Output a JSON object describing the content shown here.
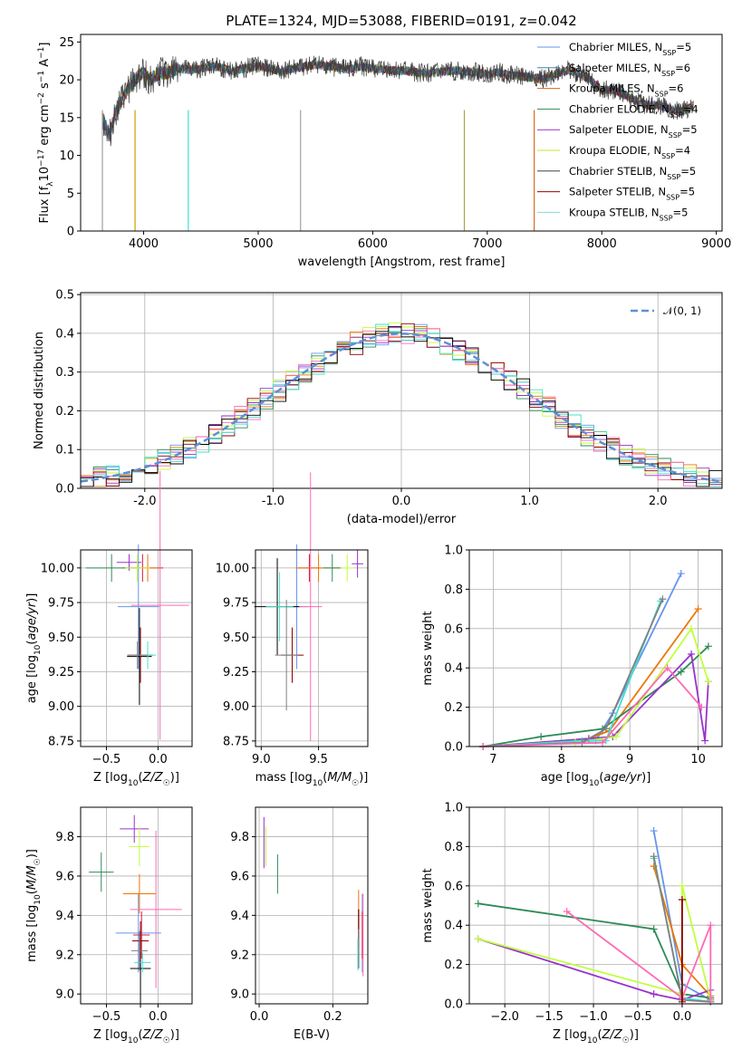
{
  "colors": [
    "#6495ed",
    "#dc143c",
    "#ee7600",
    "#2e8b57",
    "#9932cc",
    "#c0ff3e",
    "#000000",
    "#8b0000",
    "#40e0d0",
    "#ff69b4",
    "#808080"
  ],
  "series_names": [
    "Chabrier MILES, N$_{SSP}$=5",
    "Salpeter MILES, N$_{SSP}$=6",
    "Kroupa MILES, N$_{SSP}$=6",
    "Chabrier ELODIE, N$_{SSP}$=4",
    "Salpeter ELODIE, N$_{SSP}$=5",
    "Kroupa ELODIE, N$_{SSP}$=4",
    "Chabrier STELIB, N$_{SSP}$=5",
    "Salpeter STELIB, N$_{SSP}$=5",
    "Kroupa STELIB, N$_{SSP}$=5"
  ],
  "chart_data": [
    {
      "type": "line",
      "title": "PLATE=1324, MJD=53088, FIBERID=0191, z=0.042",
      "xlabel": "wavelength [Angstrom, rest frame]",
      "ylabel": "Flux [f_λ10^-17 erg cm^-2 s^-1 A^-1]",
      "xlim": [
        3450,
        9050
      ],
      "ylim": [
        0,
        26
      ],
      "xticks": [
        4000,
        5000,
        6000,
        7000,
        8000,
        9000
      ],
      "yticks": [
        0,
        5,
        10,
        15,
        20,
        25
      ],
      "legend": [
        {
          "prefix": "Chabrier MILES, N",
          "sub": "SSP",
          "suffix": "=5",
          "color": "#6495ed"
        },
        {
          "prefix": "Salpeter MILES, N",
          "sub": "SSP",
          "suffix": "=6",
          "color": "#4682b4"
        },
        {
          "prefix": "Kroupa MILES, N",
          "sub": "SSP",
          "suffix": "=6",
          "color": "#d2691e"
        },
        {
          "prefix": "Chabrier ELODIE, N",
          "sub": "SSP",
          "suffix": "=4",
          "color": "#2e8b57"
        },
        {
          "prefix": "Salpeter ELODIE, N",
          "sub": "SSP",
          "suffix": "=5",
          "color": "#9932cc"
        },
        {
          "prefix": "Kroupa ELODIE, N",
          "sub": "SSP",
          "suffix": "=4",
          "color": "#c8e632"
        },
        {
          "prefix": "Chabrier STELIB, N",
          "sub": "SSP",
          "suffix": "=5",
          "color": "#404040"
        },
        {
          "prefix": "Salpeter STELIB, N",
          "sub": "SSP",
          "suffix": "=5",
          "color": "#a00000"
        },
        {
          "prefix": "Kroupa STELIB, N",
          "sub": "SSP",
          "suffix": "=5",
          "color": "#7fdbdb"
        }
      ],
      "spectrum_x": [
        3640,
        3700,
        3750,
        3800,
        3850,
        3900,
        3950,
        4000,
        4050,
        4100,
        4150,
        4200,
        4300,
        4400,
        4500,
        4600,
        4700,
        4800,
        4900,
        5000,
        5100,
        5200,
        5300,
        5400,
        5500,
        5600,
        5700,
        5800,
        5900,
        6000,
        6100,
        6200,
        6300,
        6400,
        6500,
        6600,
        6700,
        6800,
        6900,
        7000,
        7100,
        7200,
        7300,
        7400,
        7500,
        7600,
        7700,
        7800,
        7900,
        8000,
        8100,
        8200,
        8300,
        8400,
        8500,
        8600,
        8700,
        8800
      ],
      "spectrum_y": [
        15,
        12.5,
        15.5,
        17,
        18.5,
        19.5,
        20.5,
        21,
        20,
        20.5,
        21,
        20.8,
        21.5,
        21.3,
        21.5,
        21.8,
        21.5,
        21.2,
        21.6,
        21.8,
        21.5,
        21,
        21.5,
        21.7,
        22,
        21.8,
        21.6,
        21.4,
        21.8,
        21.5,
        21.4,
        21.2,
        21.2,
        20.9,
        20.9,
        21,
        21.2,
        21.1,
        21,
        20.7,
        21,
        20.6,
        20.5,
        20.2,
        20.1,
        20.8,
        21.3,
        20.8,
        20,
        18.6,
        18.7,
        18,
        17.2,
        16.6,
        16.6,
        16.2,
        15.8,
        16.7
      ]
    },
    {
      "type": "line",
      "xlabel": "(data-model)/error",
      "ylabel": "Normed distribution",
      "xlim": [
        -2.5,
        2.5
      ],
      "ylim": [
        0,
        0.505
      ],
      "xticks": [
        -2,
        -1,
        0,
        1,
        2
      ],
      "yticks": [
        0.0,
        0.1,
        0.2,
        0.3,
        0.4,
        0.5
      ],
      "legend": [
        "𝒩(0, 1)"
      ],
      "curve": {
        "name": "𝒩(0, 1)",
        "mean": 0,
        "sigma": 1,
        "color": "#5f8fd5"
      }
    },
    {
      "type": "scatter",
      "xlabel": "Z [log10(Z/Z☉)]",
      "ylabel": "age [log10(age/yr)]",
      "xlim": [
        -0.75,
        0.33
      ],
      "ylim": [
        8.71,
        10.13
      ],
      "xticks": [
        -0.5,
        0.0
      ],
      "yticks": [
        8.75,
        9.0,
        9.25,
        9.5,
        9.75,
        10.0
      ],
      "points": [
        {
          "x": -0.19,
          "y": 9.72,
          "xerr": 0.2,
          "yerr": 0.45,
          "color": "#6495ed"
        },
        {
          "x": -0.15,
          "y": 10.0,
          "xerr": 0.2,
          "yerr": 0.1,
          "color": "#dc143c"
        },
        {
          "x": -0.1,
          "y": 10.0,
          "xerr": 0.1,
          "yerr": 0.1,
          "color": "#ee7600"
        },
        {
          "x": -0.45,
          "y": 10.0,
          "xerr": 0.25,
          "yerr": 0.1,
          "color": "#2e8b57"
        },
        {
          "x": -0.28,
          "y": 10.04,
          "xerr": 0.12,
          "yerr": 0.06,
          "color": "#9932cc"
        },
        {
          "x": -0.2,
          "y": 10.0,
          "xerr": 0.12,
          "yerr": 0.1,
          "color": "#c0ff3e"
        },
        {
          "x": -0.18,
          "y": 9.36,
          "xerr": 0.12,
          "yerr": 0.35,
          "color": "#000000"
        },
        {
          "x": -0.17,
          "y": 9.37,
          "xerr": 0.12,
          "yerr": 0.2,
          "color": "#8b0000"
        },
        {
          "x": -0.1,
          "y": 9.37,
          "xerr": 0.08,
          "yerr": 0.1,
          "color": "#40e0d0"
        },
        {
          "x": 0.02,
          "y": 9.73,
          "xerr": 0.28,
          "yerr": 0.97,
          "color": "#ff69b4"
        },
        {
          "x": -0.2,
          "y": 9.37,
          "xerr": 0.1,
          "yerr": 0.1,
          "color": "#808080"
        }
      ]
    },
    {
      "type": "scatter",
      "xlabel": "mass [log10(M/M☉)]",
      "ylabel": "",
      "xlim": [
        8.95,
        9.93
      ],
      "ylim": [
        8.71,
        10.13
      ],
      "xticks": [
        9.0,
        9.5
      ],
      "yticks": [
        8.75,
        9.0,
        9.25,
        9.5,
        9.75,
        10.0
      ],
      "points": [
        {
          "x": 9.31,
          "y": 9.72,
          "xerr": 0.1,
          "yerr": 0.45,
          "color": "#6495ed"
        },
        {
          "x": 9.42,
          "y": 10.0,
          "xerr": 0.1,
          "yerr": 0.1,
          "color": "#dc143c"
        },
        {
          "x": 9.5,
          "y": 10.0,
          "xerr": 0.2,
          "yerr": 0.1,
          "color": "#ee7600"
        },
        {
          "x": 9.62,
          "y": 10.0,
          "xerr": 0.08,
          "yerr": 0.1,
          "color": "#2e8b57"
        },
        {
          "x": 9.84,
          "y": 10.03,
          "xerr": 0.05,
          "yerr": 0.1,
          "color": "#9932cc"
        },
        {
          "x": 9.75,
          "y": 10.0,
          "xerr": 0.06,
          "yerr": 0.1,
          "color": "#c0ff3e"
        },
        {
          "x": 9.14,
          "y": 9.72,
          "xerr": 0.2,
          "yerr": 0.35,
          "color": "#000000"
        },
        {
          "x": 9.27,
          "y": 9.37,
          "xerr": 0.1,
          "yerr": 0.2,
          "color": "#8b0000"
        },
        {
          "x": 9.16,
          "y": 9.72,
          "xerr": 0.12,
          "yerr": 0.25,
          "color": "#40e0d0"
        },
        {
          "x": 9.43,
          "y": 9.72,
          "xerr": 0.1,
          "yerr": 0.97,
          "color": "#ff69b4"
        },
        {
          "x": 9.22,
          "y": 9.37,
          "xerr": 0.1,
          "yerr": 0.4,
          "color": "#808080"
        }
      ]
    },
    {
      "type": "line",
      "xlabel": "age [log10(age/yr)]",
      "ylabel": "mass weight",
      "xlim": [
        6.65,
        10.35
      ],
      "ylim": [
        0,
        1.0
      ],
      "xticks": [
        7,
        8,
        9,
        10
      ],
      "yticks": [
        0.0,
        0.2,
        0.4,
        0.6,
        0.8,
        1.0
      ],
      "series": [
        {
          "color": "#6495ed",
          "x": [
            6.85,
            8.5,
            8.75,
            9.75
          ],
          "y": [
            0.0,
            0.03,
            0.17,
            0.88
          ]
        },
        {
          "color": "#ee7600",
          "x": [
            6.85,
            8.4,
            8.7,
            10.0
          ],
          "y": [
            0.0,
            0.04,
            0.08,
            0.7
          ]
        },
        {
          "color": "#2e8b57",
          "x": [
            6.85,
            7.7,
            8.6,
            9.75,
            10.15
          ],
          "y": [
            0.0,
            0.05,
            0.09,
            0.38,
            0.51
          ]
        },
        {
          "color": "#9932cc",
          "x": [
            6.85,
            8.4,
            8.75,
            9.9,
            10.1,
            10.15
          ],
          "y": [
            0.0,
            0.04,
            0.05,
            0.47,
            0.03,
            0.33
          ]
        },
        {
          "color": "#c0ff3e",
          "x": [
            6.85,
            8.2,
            8.8,
            9.9,
            10.15
          ],
          "y": [
            0.0,
            0.02,
            0.05,
            0.6,
            0.33
          ]
        },
        {
          "color": "#40e0d0",
          "x": [
            6.85,
            8.3,
            8.65,
            9.45
          ],
          "y": [
            0.0,
            0.03,
            0.03,
            0.74
          ]
        },
        {
          "color": "#808080",
          "x": [
            6.85,
            8.3,
            8.65,
            9.48
          ],
          "y": [
            0.0,
            0.02,
            0.09,
            0.75
          ]
        },
        {
          "color": "#ff69b4",
          "x": [
            6.85,
            8.6,
            9.55,
            10.05
          ],
          "y": [
            0.0,
            0.02,
            0.4,
            0.2
          ]
        }
      ]
    },
    {
      "type": "scatter",
      "xlabel": "Z [log10(Z/Z☉)]",
      "ylabel": "mass [log10(M/M☉)]",
      "xlim": [
        -0.75,
        0.33
      ],
      "ylim": [
        8.95,
        9.95
      ],
      "xticks": [
        -0.5,
        0.0
      ],
      "yticks": [
        9.0,
        9.2,
        9.4,
        9.6,
        9.8
      ],
      "points": [
        {
          "x": -0.19,
          "y": 9.31,
          "xerr": 0.22,
          "yerr": 0.2,
          "color": "#6495ed"
        },
        {
          "x": -0.16,
          "y": 9.3,
          "xerr": 0.08,
          "yerr": 0.12,
          "color": "#dc143c"
        },
        {
          "x": -0.18,
          "y": 9.51,
          "xerr": 0.16,
          "yerr": 0.1,
          "color": "#ee7600"
        },
        {
          "x": -0.55,
          "y": 9.62,
          "xerr": 0.12,
          "yerr": 0.1,
          "color": "#2e8b57"
        },
        {
          "x": -0.23,
          "y": 9.84,
          "xerr": 0.14,
          "yerr": 0.07,
          "color": "#9932cc"
        },
        {
          "x": -0.18,
          "y": 9.75,
          "xerr": 0.1,
          "yerr": 0.1,
          "color": "#c0ff3e"
        },
        {
          "x": -0.17,
          "y": 9.13,
          "xerr": 0.1,
          "yerr": 0.2,
          "color": "#000000"
        },
        {
          "x": -0.17,
          "y": 9.27,
          "xerr": 0.08,
          "yerr": 0.1,
          "color": "#8b0000"
        },
        {
          "x": -0.15,
          "y": 9.16,
          "xerr": 0.08,
          "yerr": 0.05,
          "color": "#40e0d0"
        },
        {
          "x": -0.02,
          "y": 9.43,
          "xerr": 0.25,
          "yerr": 0.4,
          "color": "#ff69b4"
        },
        {
          "x": -0.18,
          "y": 9.22,
          "xerr": 0.08,
          "yerr": 0.1,
          "color": "#808080"
        }
      ]
    },
    {
      "type": "scatter",
      "xlabel": "E(B-V)",
      "ylabel": "",
      "xlim": [
        -0.01,
        0.295
      ],
      "ylim": [
        8.95,
        9.95
      ],
      "xticks": [
        0.0,
        0.2
      ],
      "yticks": [
        9.0,
        9.2,
        9.4,
        9.6,
        9.8
      ],
      "points": [
        {
          "x": 0.28,
          "y": 9.31,
          "yerr": 0.2,
          "color": "#6495ed"
        },
        {
          "x": 0.28,
          "y": 9.3,
          "yerr": 0.12,
          "color": "#dc143c"
        },
        {
          "x": 0.27,
          "y": 9.4,
          "yerr": 0.13,
          "color": "#ee7600"
        },
        {
          "x": 0.05,
          "y": 9.61,
          "yerr": 0.1,
          "color": "#2e8b57"
        },
        {
          "x": 0.013,
          "y": 9.77,
          "yerr": 0.13,
          "color": "#9932cc"
        },
        {
          "x": 0.018,
          "y": 9.75,
          "yerr": 0.1,
          "color": "#c0ff3e"
        },
        {
          "x": 0.27,
          "y": 9.28,
          "yerr": 0.15,
          "color": "#000000"
        },
        {
          "x": 0.27,
          "y": 9.33,
          "yerr": 0.1,
          "color": "#8b0000"
        },
        {
          "x": 0.268,
          "y": 9.2,
          "yerr": 0.08,
          "color": "#40e0d0"
        },
        {
          "x": 0.282,
          "y": 9.3,
          "yerr": 0.21,
          "color": "#ff69b4"
        },
        {
          "x": 0.27,
          "y": 9.23,
          "yerr": 0.1,
          "color": "#808080"
        }
      ]
    },
    {
      "type": "line",
      "xlabel": "Z [log10(Z/Z☉)]",
      "ylabel": "mass weight",
      "xlim": [
        -2.4,
        0.45
      ],
      "ylim": [
        0,
        1.0
      ],
      "xticks": [
        -2.0,
        -1.5,
        -1.0,
        -0.5,
        0.0
      ],
      "yticks": [
        0.0,
        0.2,
        0.4,
        0.6,
        0.8,
        1.0
      ],
      "series": [
        {
          "color": "#6495ed",
          "x": [
            -0.32,
            0.0,
            0.32
          ],
          "y": [
            0.88,
            0.1,
            0.02
          ]
        },
        {
          "color": "#ee7600",
          "x": [
            -0.32,
            0.0,
            0.32
          ],
          "y": [
            0.7,
            0.2,
            0.04
          ]
        },
        {
          "color": "#2e8b57",
          "x": [
            -2.3,
            -0.32,
            0.0,
            0.32
          ],
          "y": [
            0.51,
            0.38,
            0.05,
            0.03
          ]
        },
        {
          "color": "#9932cc",
          "x": [
            -2.3,
            -0.32,
            0.0,
            0.32
          ],
          "y": [
            0.33,
            0.05,
            0.02,
            0.07
          ]
        },
        {
          "color": "#c0ff3e",
          "x": [
            -2.3,
            0.0,
            0.0,
            0.32
          ],
          "y": [
            0.33,
            0.05,
            0.6,
            0.02
          ]
        },
        {
          "color": "#40e0d0",
          "x": [
            -0.32,
            0.0,
            0.32
          ],
          "y": [
            0.74,
            0.03,
            0.01
          ]
        },
        {
          "color": "#808080",
          "x": [
            -0.32,
            0.0,
            0.32
          ],
          "y": [
            0.75,
            0.02,
            0.01
          ]
        },
        {
          "color": "#ff69b4",
          "x": [
            -1.3,
            0.0,
            0.32,
            0.32
          ],
          "y": [
            0.47,
            0.03,
            0.4,
            0.02
          ]
        },
        {
          "color": "#8b0000",
          "x": [
            0.0,
            0.0
          ],
          "y": [
            0.53,
            0.01
          ]
        }
      ]
    }
  ]
}
